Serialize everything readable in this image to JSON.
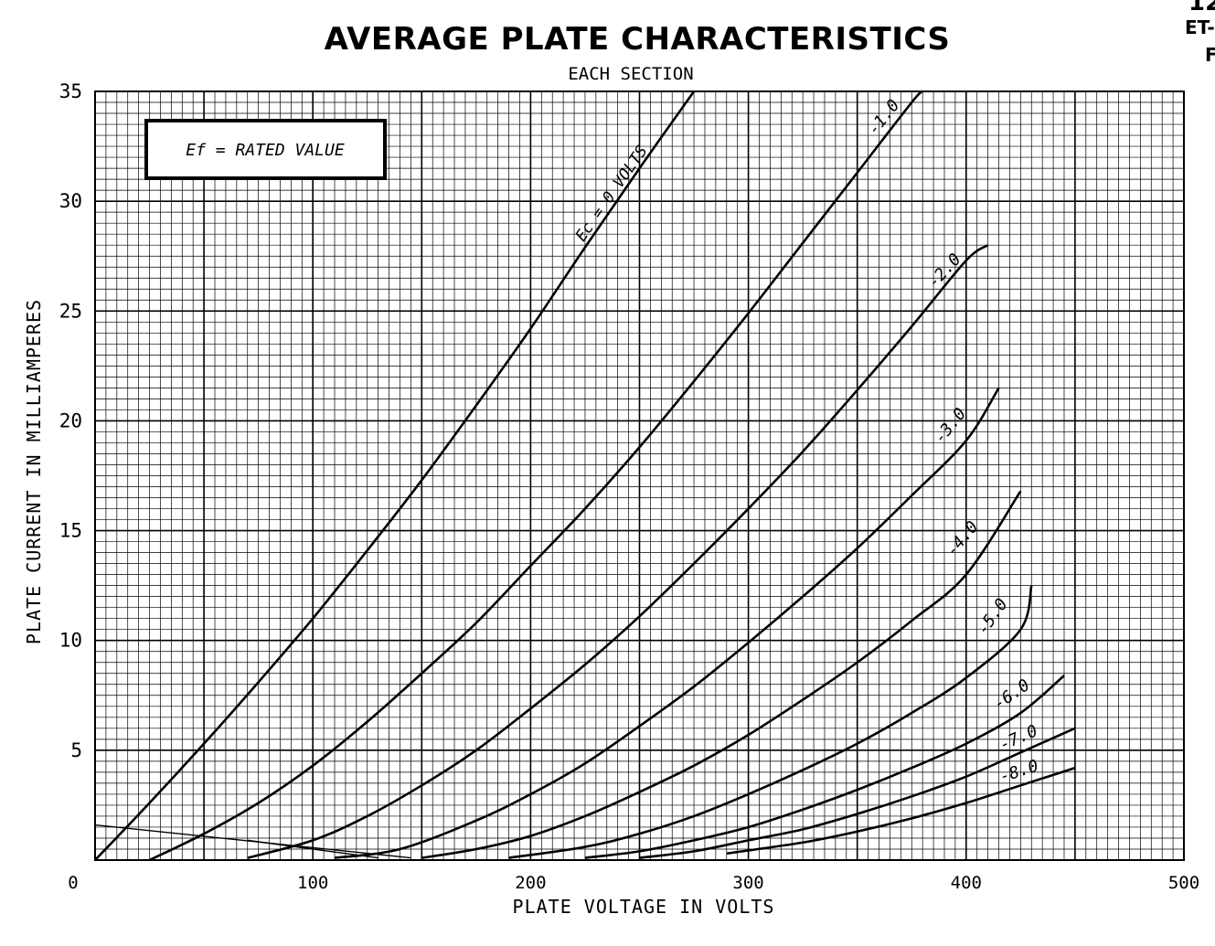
{
  "corner_text": {
    "line1": "12",
    "line2": "ET-",
    "line3": "F"
  },
  "chart_data": {
    "type": "line",
    "title": "AVERAGE PLATE CHARACTERISTICS",
    "subtitle": "EACH SECTION",
    "annotation": "Ef = RATED VALUE",
    "xlabel": "PLATE VOLTAGE IN VOLTS",
    "ylabel": "PLATE CURRENT IN MILLIAMPERES",
    "xlim": [
      0,
      500
    ],
    "ylim": [
      0,
      35
    ],
    "x_ticks": [
      0,
      100,
      200,
      300,
      400,
      500
    ],
    "y_ticks": [
      5,
      10,
      15,
      20,
      25,
      30,
      35
    ],
    "grid": true,
    "series": [
      {
        "name": "Ec = 0 VOLTS",
        "label": "Ec = 0 VOLTS",
        "points": [
          [
            0,
            0
          ],
          [
            25,
            2.6
          ],
          [
            50,
            5.3
          ],
          [
            75,
            8.1
          ],
          [
            100,
            11
          ],
          [
            125,
            14.1
          ],
          [
            150,
            17.3
          ],
          [
            175,
            20.7
          ],
          [
            200,
            24.2
          ],
          [
            225,
            27.9
          ],
          [
            250,
            31.5
          ],
          [
            275,
            35
          ]
        ]
      },
      {
        "name": "-1.0",
        "label": "-1.0",
        "points": [
          [
            25,
            0
          ],
          [
            50,
            1.2
          ],
          [
            75,
            2.6
          ],
          [
            100,
            4.3
          ],
          [
            125,
            6.3
          ],
          [
            150,
            8.5
          ],
          [
            175,
            10.8
          ],
          [
            200,
            13.4
          ],
          [
            225,
            16
          ],
          [
            250,
            18.8
          ],
          [
            275,
            21.8
          ],
          [
            300,
            24.9
          ],
          [
            325,
            28.1
          ],
          [
            350,
            31.3
          ],
          [
            375,
            34.5
          ],
          [
            380,
            35
          ]
        ]
      },
      {
        "name": "-2.0",
        "label": "-2.0",
        "points": [
          [
            70,
            0.1
          ],
          [
            100,
            0.9
          ],
          [
            125,
            2
          ],
          [
            150,
            3.4
          ],
          [
            175,
            5
          ],
          [
            200,
            6.9
          ],
          [
            225,
            8.9
          ],
          [
            250,
            11.1
          ],
          [
            275,
            13.5
          ],
          [
            300,
            16
          ],
          [
            325,
            18.6
          ],
          [
            350,
            21.4
          ],
          [
            375,
            24.3
          ],
          [
            400,
            27.3
          ],
          [
            410,
            28
          ]
        ]
      },
      {
        "name": "-3.0",
        "label": "-3.0",
        "points": [
          [
            110,
            0.1
          ],
          [
            140,
            0.5
          ],
          [
            175,
            1.8
          ],
          [
            200,
            3
          ],
          [
            225,
            4.4
          ],
          [
            250,
            6.1
          ],
          [
            275,
            7.9
          ],
          [
            300,
            9.9
          ],
          [
            325,
            12
          ],
          [
            350,
            14.2
          ],
          [
            375,
            16.6
          ],
          [
            400,
            19.1
          ],
          [
            415,
            21.5
          ]
        ]
      },
      {
        "name": "-4.0",
        "label": "-4.0",
        "points": [
          [
            150,
            0.1
          ],
          [
            175,
            0.5
          ],
          [
            200,
            1.1
          ],
          [
            225,
            2
          ],
          [
            250,
            3.1
          ],
          [
            275,
            4.3
          ],
          [
            300,
            5.7
          ],
          [
            325,
            7.3
          ],
          [
            350,
            9
          ],
          [
            375,
            10.9
          ],
          [
            400,
            13
          ],
          [
            425,
            16.8
          ]
        ]
      },
      {
        "name": "-5.0",
        "label": "-5.0",
        "points": [
          [
            190,
            0.1
          ],
          [
            225,
            0.6
          ],
          [
            250,
            1.2
          ],
          [
            275,
            2
          ],
          [
            300,
            3
          ],
          [
            325,
            4.1
          ],
          [
            350,
            5.3
          ],
          [
            375,
            6.7
          ],
          [
            400,
            8.3
          ],
          [
            425,
            10.5
          ],
          [
            430,
            12.5
          ]
        ]
      },
      {
        "name": "-6.0",
        "label": "-6.0",
        "points": [
          [
            225,
            0.1
          ],
          [
            250,
            0.4
          ],
          [
            275,
            0.9
          ],
          [
            300,
            1.5
          ],
          [
            325,
            2.3
          ],
          [
            350,
            3.2
          ],
          [
            375,
            4.2
          ],
          [
            400,
            5.3
          ],
          [
            425,
            6.7
          ],
          [
            445,
            8.4
          ]
        ]
      },
      {
        "name": "-7.0",
        "label": "-7.0",
        "points": [
          [
            250,
            0.1
          ],
          [
            275,
            0.4
          ],
          [
            300,
            0.9
          ],
          [
            325,
            1.4
          ],
          [
            350,
            2.1
          ],
          [
            375,
            2.9
          ],
          [
            400,
            3.8
          ],
          [
            425,
            4.9
          ],
          [
            450,
            6
          ]
        ]
      },
      {
        "name": "-8.0",
        "label": "-8.0",
        "points": [
          [
            290,
            0.3
          ],
          [
            325,
            0.8
          ],
          [
            350,
            1.3
          ],
          [
            375,
            1.9
          ],
          [
            400,
            2.6
          ],
          [
            425,
            3.4
          ],
          [
            450,
            4.2
          ]
        ]
      }
    ],
    "construction_lines": [
      {
        "points": [
          [
            0,
            1.6
          ],
          [
            145,
            0.1
          ]
        ]
      },
      {
        "points": [
          [
            70,
            0.9
          ],
          [
            130,
            0.1
          ]
        ]
      }
    ]
  }
}
